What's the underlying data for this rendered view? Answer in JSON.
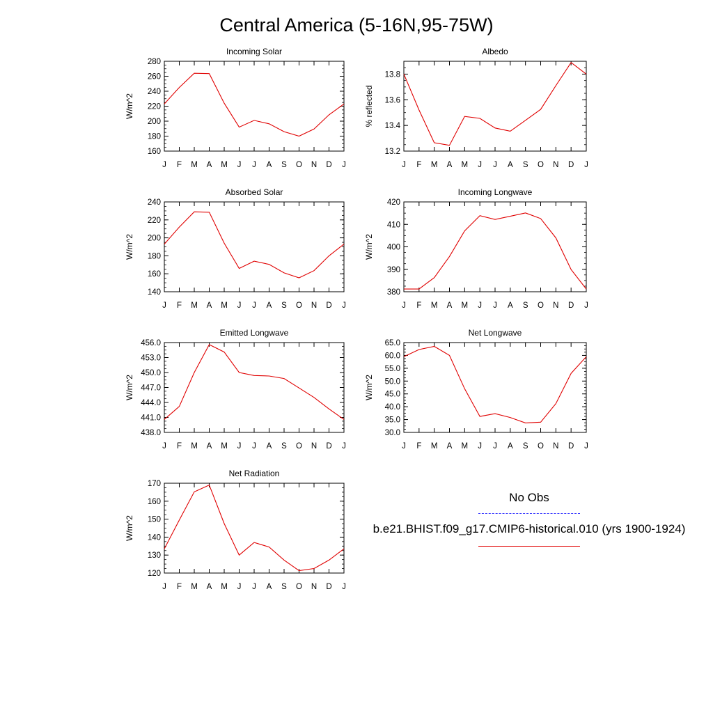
{
  "page": {
    "title": "Central America (5-16N,95-75W)"
  },
  "legend": {
    "obs_label": "No Obs",
    "model_label": "b.e21.BHIST.f09_g17.CMIP6-historical.010 (yrs 1900-1924)",
    "obs_color": "#3b3bff",
    "model_color": "#e00000"
  },
  "chart_data": [
    {
      "type": "line",
      "title": "Incoming Solar",
      "ylabel": "W/m^2",
      "categories": [
        "J",
        "F",
        "M",
        "A",
        "M",
        "J",
        "J",
        "A",
        "S",
        "O",
        "N",
        "D",
        "J"
      ],
      "ylim": [
        160,
        280
      ],
      "yticks": [
        "160",
        "180",
        "200",
        "220",
        "240",
        "260",
        "280"
      ],
      "values": [
        223,
        245,
        264,
        263.5,
        224,
        192,
        201,
        196.5,
        186,
        180,
        189.5,
        208.5,
        223
      ]
    },
    {
      "type": "line",
      "title": "Albedo",
      "ylabel": "% reflected",
      "categories": [
        "J",
        "F",
        "M",
        "A",
        "M",
        "J",
        "J",
        "A",
        "S",
        "O",
        "N",
        "D",
        "J"
      ],
      "ylim": [
        13.2,
        13.9
      ],
      "yticks": [
        "13.2",
        "13.4",
        "13.6",
        "13.8"
      ],
      "values": [
        13.8,
        13.52,
        13.265,
        13.245,
        13.47,
        13.455,
        13.38,
        13.355,
        13.44,
        13.525,
        13.71,
        13.89,
        13.8
      ]
    },
    {
      "type": "line",
      "title": "Absorbed Solar",
      "ylabel": "W/m^2",
      "categories": [
        "J",
        "F",
        "M",
        "A",
        "M",
        "J",
        "J",
        "A",
        "S",
        "O",
        "N",
        "D",
        "J"
      ],
      "ylim": [
        140,
        240
      ],
      "yticks": [
        "140",
        "160",
        "180",
        "200",
        "220",
        "240"
      ],
      "values": [
        193,
        212,
        229,
        228.5,
        194,
        166,
        174,
        170.5,
        161,
        155.5,
        163.5,
        180,
        193
      ]
    },
    {
      "type": "line",
      "title": "Incoming Longwave",
      "ylabel": "W/m^2",
      "categories": [
        "J",
        "F",
        "M",
        "A",
        "M",
        "J",
        "J",
        "A",
        "S",
        "O",
        "N",
        "D",
        "J"
      ],
      "ylim": [
        380,
        420
      ],
      "yticks": [
        "380",
        "390",
        "400",
        "410",
        "420"
      ],
      "values": [
        381.2,
        381.2,
        386.3,
        395.7,
        407.1,
        413.9,
        412.2,
        413.6,
        415.1,
        412.6,
        404,
        389.9,
        381.2
      ]
    },
    {
      "type": "line",
      "title": "Emitted Longwave",
      "ylabel": "W/m^2",
      "categories": [
        "J",
        "F",
        "M",
        "A",
        "M",
        "J",
        "J",
        "A",
        "S",
        "O",
        "N",
        "D",
        "J"
      ],
      "ylim": [
        438,
        456
      ],
      "yticks": [
        "438.0",
        "441.0",
        "444.0",
        "447.0",
        "450.0",
        "453.0",
        "456.0"
      ],
      "values": [
        440.6,
        443.2,
        450,
        455.6,
        454.1,
        450,
        449.4,
        449.3,
        448.8,
        446.9,
        445,
        442.7,
        440.6
      ]
    },
    {
      "type": "line",
      "title": "Net Longwave",
      "ylabel": "W/m^2",
      "categories": [
        "J",
        "F",
        "M",
        "A",
        "M",
        "J",
        "J",
        "A",
        "S",
        "O",
        "N",
        "D",
        "J"
      ],
      "ylim": [
        30,
        65
      ],
      "yticks": [
        "30.0",
        "35.0",
        "40.0",
        "45.0",
        "50.0",
        "55.0",
        "60.0",
        "65.0"
      ],
      "values": [
        59.5,
        62.3,
        63.5,
        60,
        47,
        36.2,
        37.3,
        35.8,
        33.7,
        34,
        41.2,
        53,
        59.5
      ]
    },
    {
      "type": "line",
      "title": "Net Radiation",
      "ylabel": "W/m^2",
      "categories": [
        "J",
        "F",
        "M",
        "A",
        "M",
        "J",
        "J",
        "A",
        "S",
        "O",
        "N",
        "D",
        "J"
      ],
      "ylim": [
        120,
        170
      ],
      "yticks": [
        "120",
        "130",
        "140",
        "150",
        "160",
        "170"
      ],
      "values": [
        133.5,
        149.5,
        165.2,
        169,
        147.5,
        130,
        137,
        134.5,
        127.2,
        121.3,
        122.5,
        127.2,
        133.5
      ]
    }
  ]
}
